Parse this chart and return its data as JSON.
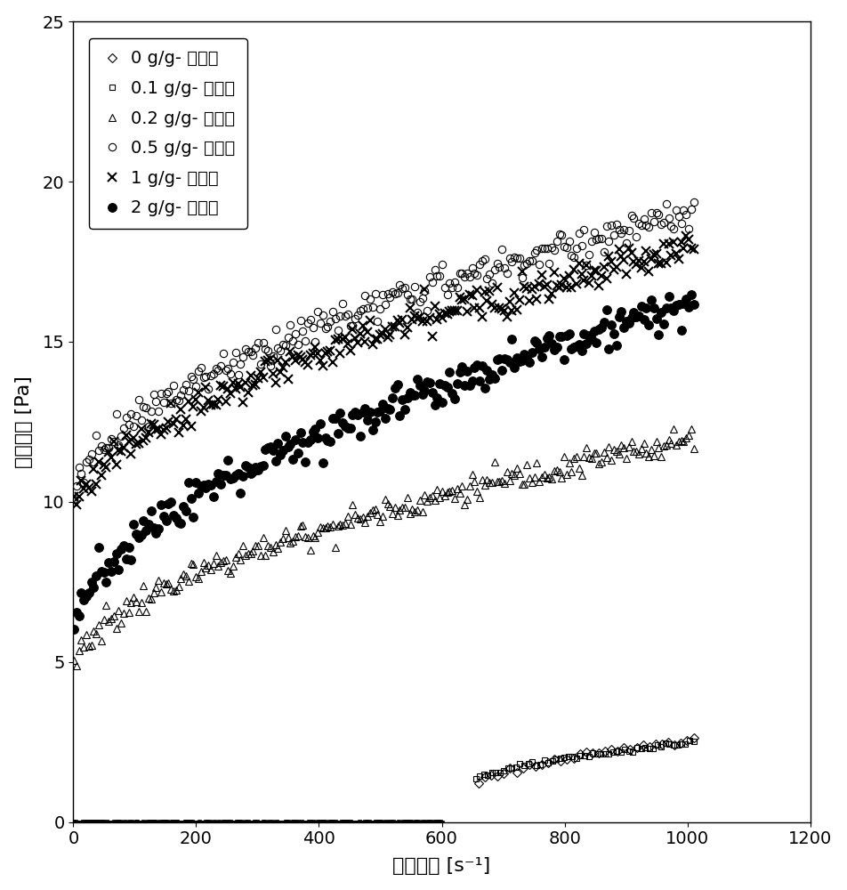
{
  "xlabel": "剪切速度 [s⁻¹]",
  "ylabel": "剪切应力 [Pa]",
  "xlim": [
    0,
    1200
  ],
  "ylim": [
    0,
    25
  ],
  "xticks": [
    0,
    200,
    400,
    600,
    800,
    1000,
    1200
  ],
  "yticks": [
    0,
    5,
    10,
    15,
    20,
    25
  ],
  "legend_labels": [
    "0 g/g- 聚合物",
    "0.1 g/g- 聚合物",
    "0.2 g/g- 聚合物",
    "0.5 g/g- 聚合物",
    "1 g/g- 聚合物",
    "2 g/g- 聚合物"
  ],
  "series": [
    {
      "idx": 0,
      "marker": "D",
      "filled": false,
      "x_start": 660,
      "x_end": 1010,
      "y_start": 1.25,
      "y_end": 2.6,
      "n_points": 35,
      "markersize": 5,
      "power": 0.7
    },
    {
      "idx": 1,
      "marker": "s",
      "filled": false,
      "x_start": 655,
      "x_end": 1010,
      "y_start": 1.35,
      "y_end": 2.5,
      "n_points": 55,
      "markersize": 5,
      "power": 0.7
    },
    {
      "idx": 2,
      "marker": "^",
      "filled": false,
      "x_start": 1,
      "x_end": 1010,
      "y_start": 4.8,
      "y_end": 12.0,
      "n_points": 250,
      "markersize": 6,
      "power": 0.55
    },
    {
      "idx": 3,
      "marker": "o",
      "filled": false,
      "x_start": 1,
      "x_end": 1010,
      "y_start": 10.2,
      "y_end": 19.0,
      "n_points": 250,
      "markersize": 6,
      "power": 0.55
    },
    {
      "idx": 4,
      "marker": "x",
      "filled": false,
      "x_start": 1,
      "x_end": 1010,
      "y_start": 9.5,
      "y_end": 18.0,
      "n_points": 250,
      "markersize": 7,
      "power": 0.55
    },
    {
      "idx": 5,
      "marker": "o",
      "filled": true,
      "x_start": 1,
      "x_end": 1010,
      "y_start": 6.0,
      "y_end": 16.2,
      "n_points": 250,
      "markersize": 7,
      "power": 0.55
    }
  ],
  "zero_bar": {
    "x_start": 1,
    "x_end": 600,
    "n_points": 250
  },
  "background_color": "#ffffff"
}
